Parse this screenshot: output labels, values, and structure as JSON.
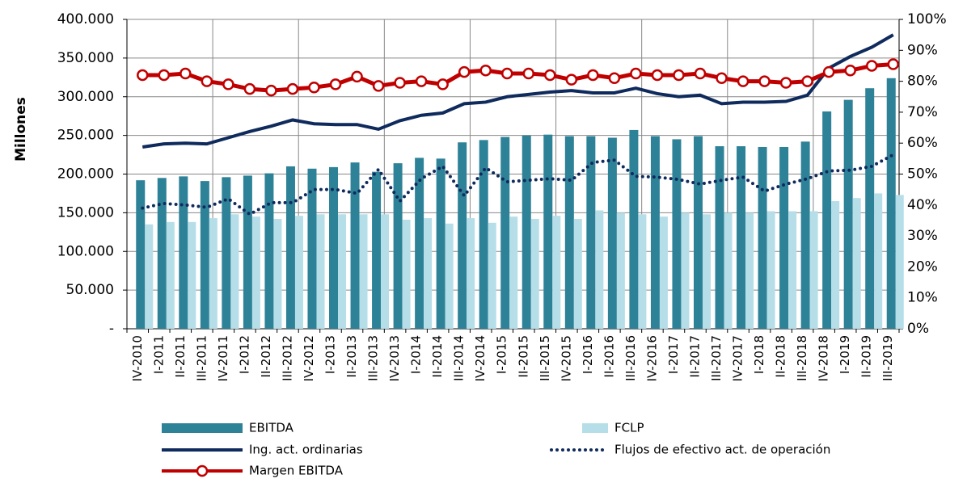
{
  "chart_data": {
    "type": "combo",
    "y_label": "Millones",
    "categories": [
      "IV-2010",
      "I-2011",
      "II-2011",
      "III-2011",
      "IV-2011",
      "I-2012",
      "II-2012",
      "III-2012",
      "IV-2012",
      "I-2013",
      "II-2013",
      "III-2013",
      "IV-2013",
      "I-2014",
      "II-2014",
      "III-2014",
      "IV-2014",
      "I-2015",
      "II-2015",
      "III-2015",
      "IV-2015",
      "I-2016",
      "II-2016",
      "III-2016",
      "IV-2016",
      "I-2017",
      "II-2017",
      "III-2017",
      "IV-2017",
      "I-2018",
      "II-2018",
      "III-2018",
      "IV-2018",
      "I-2019",
      "II-2019",
      "III-2019"
    ],
    "ylim": [
      0,
      400000
    ],
    "yticks": [
      {
        "value": 0,
        "label": "-"
      },
      {
        "value": 50000,
        "label": "50.000"
      },
      {
        "value": 100000,
        "label": "100.000"
      },
      {
        "value": 150000,
        "label": "150.000"
      },
      {
        "value": 200000,
        "label": "200.000"
      },
      {
        "value": 250000,
        "label": "250.000"
      },
      {
        "value": 300000,
        "label": "300.000"
      },
      {
        "value": 350000,
        "label": "350.000"
      },
      {
        "value": 400000,
        "label": "400.000"
      }
    ],
    "y2lim": [
      0,
      100
    ],
    "y2ticks": [
      {
        "value": 0,
        "label": "0%"
      },
      {
        "value": 10,
        "label": "10%"
      },
      {
        "value": 20,
        "label": "20%"
      },
      {
        "value": 30,
        "label": "30%"
      },
      {
        "value": 40,
        "label": "40%"
      },
      {
        "value": 50,
        "label": "50%"
      },
      {
        "value": 60,
        "label": "60%"
      },
      {
        "value": 70,
        "label": "70%"
      },
      {
        "value": 80,
        "label": "80%"
      },
      {
        "value": 90,
        "label": "90%"
      },
      {
        "value": 100,
        "label": "100%"
      }
    ],
    "grid": true,
    "series": [
      {
        "name": "EBITDA",
        "type": "bar",
        "color": "#2e8298",
        "values": [
          192000,
          195000,
          197000,
          191000,
          196000,
          198000,
          201000,
          210000,
          207000,
          209000,
          215000,
          203000,
          214000,
          221000,
          220000,
          241000,
          244000,
          248000,
          250000,
          251000,
          249000,
          249000,
          247000,
          257000,
          249000,
          245000,
          249000,
          236000,
          236000,
          235000,
          235000,
          242000,
          281000,
          296000,
          311000,
          324000
        ]
      },
      {
        "name": "FCLP",
        "type": "bar",
        "color": "#b6dee8",
        "values": [
          135000,
          138000,
          138000,
          143000,
          148000,
          145000,
          142000,
          146000,
          148000,
          148000,
          148000,
          148000,
          141000,
          143000,
          136000,
          143000,
          137000,
          145000,
          142000,
          146000,
          142000,
          153000,
          150000,
          148000,
          145000,
          150000,
          148000,
          150000,
          150000,
          152000,
          152000,
          152000,
          165000,
          169000,
          175000,
          173000
        ]
      },
      {
        "name": "Ing. act. ordinarias",
        "type": "line",
        "color": "#0f2a5c",
        "values": [
          235000,
          239000,
          240000,
          239000,
          247000,
          255000,
          262000,
          270000,
          265000,
          264000,
          264000,
          258000,
          269000,
          276000,
          279000,
          291000,
          293000,
          300000,
          303000,
          306000,
          308000,
          305000,
          305000,
          311000,
          304000,
          300000,
          302000,
          291000,
          293000,
          293000,
          294000,
          302000,
          337000,
          352000,
          364000,
          380000
        ]
      },
      {
        "name": "Flujos de efectivo act. de operación",
        "type": "line",
        "dash": "dotted",
        "color": "#0f2a5c",
        "values": [
          156000,
          162000,
          160000,
          157000,
          168000,
          148000,
          163000,
          163000,
          180000,
          180000,
          175000,
          206000,
          165000,
          194000,
          210000,
          172000,
          208000,
          190000,
          192000,
          194000,
          192000,
          215000,
          218000,
          197000,
          196000,
          193000,
          187000,
          192000,
          196000,
          178000,
          187000,
          194000,
          204000,
          205000,
          210000,
          225000
        ]
      },
      {
        "name": "Margen EBITDA",
        "type": "line",
        "marker": "circle",
        "axis": "y2",
        "color": "#c00000",
        "values": [
          82,
          82,
          82.5,
          80,
          79,
          77.5,
          77,
          77.5,
          78,
          79,
          81.5,
          78.5,
          79.5,
          80,
          79,
          83,
          83.5,
          82.5,
          82.5,
          82,
          80.5,
          82,
          81,
          82.5,
          82,
          82,
          82.5,
          81,
          80,
          80,
          79.5,
          80,
          83,
          83.5,
          85,
          85.5
        ]
      }
    ]
  }
}
